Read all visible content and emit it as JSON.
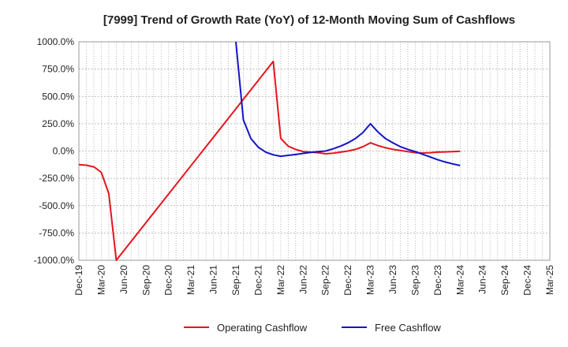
{
  "chart_data": {
    "type": "line",
    "title": "[7999]  Trend of Growth Rate (YoY) of 12-Month Moving Sum of Cashflows",
    "xlabel": "",
    "ylabel": "",
    "ylim": [
      -1000,
      1000
    ],
    "y_ticks": [
      1000,
      750,
      500,
      250,
      0,
      -250,
      -500,
      -750,
      -1000
    ],
    "y_tick_labels": [
      "1000.0%",
      "750.0%",
      "500.0%",
      "250.0%",
      "0.0%",
      "-250.0%",
      "-500.0%",
      "-750.0%",
      "-1000.0%"
    ],
    "x_tick_labels": [
      "Dec-19",
      "Mar-20",
      "Jun-20",
      "Sep-20",
      "Dec-20",
      "Mar-21",
      "Jun-21",
      "Sep-21",
      "Dec-21",
      "Mar-22",
      "Jun-22",
      "Sep-22",
      "Dec-22",
      "Mar-23",
      "Jun-23",
      "Sep-23",
      "Dec-23",
      "Mar-24",
      "Jun-24",
      "Sep-24",
      "Dec-24",
      "Mar-25"
    ],
    "x_range": [
      "2019-12",
      "2025-03"
    ],
    "grid": true,
    "legend_position": "bottom",
    "series": [
      {
        "name": "Operating Cashflow",
        "color": "#e8141c",
        "points": [
          {
            "x": "2019-12",
            "y": -125
          },
          {
            "x": "2020-01",
            "y": -130
          },
          {
            "x": "2020-02",
            "y": -145
          },
          {
            "x": "2020-03",
            "y": -195
          },
          {
            "x": "2020-04",
            "y": -390
          },
          {
            "x": "2020-05",
            "y": -1000
          },
          {
            "x": "2022-02",
            "y": 820
          },
          {
            "x": "2022-03",
            "y": 115
          },
          {
            "x": "2022-04",
            "y": 45
          },
          {
            "x": "2022-05",
            "y": 15
          },
          {
            "x": "2022-06",
            "y": -5
          },
          {
            "x": "2022-07",
            "y": -10
          },
          {
            "x": "2022-08",
            "y": -15
          },
          {
            "x": "2022-09",
            "y": -25
          },
          {
            "x": "2022-10",
            "y": -20
          },
          {
            "x": "2022-11",
            "y": -10
          },
          {
            "x": "2022-12",
            "y": 0
          },
          {
            "x": "2023-01",
            "y": 15
          },
          {
            "x": "2023-02",
            "y": 40
          },
          {
            "x": "2023-03",
            "y": 75
          },
          {
            "x": "2023-04",
            "y": 50
          },
          {
            "x": "2023-05",
            "y": 30
          },
          {
            "x": "2023-06",
            "y": 15
          },
          {
            "x": "2023-07",
            "y": 5
          },
          {
            "x": "2023-08",
            "y": -5
          },
          {
            "x": "2023-09",
            "y": -15
          },
          {
            "x": "2023-10",
            "y": -18
          },
          {
            "x": "2023-11",
            "y": -15
          },
          {
            "x": "2023-12",
            "y": -10
          },
          {
            "x": "2024-01",
            "y": -8
          },
          {
            "x": "2024-02",
            "y": -5
          },
          {
            "x": "2024-03",
            "y": -3
          }
        ]
      },
      {
        "name": "Free Cashflow",
        "color": "#1414c8",
        "points": [
          {
            "x": "2021-09",
            "y": 1000
          },
          {
            "x": "2021-10",
            "y": 285
          },
          {
            "x": "2021-11",
            "y": 115
          },
          {
            "x": "2021-12",
            "y": 35
          },
          {
            "x": "2022-01",
            "y": -10
          },
          {
            "x": "2022-02",
            "y": -35
          },
          {
            "x": "2022-03",
            "y": -48
          },
          {
            "x": "2022-04",
            "y": -40
          },
          {
            "x": "2022-05",
            "y": -32
          },
          {
            "x": "2022-06",
            "y": -22
          },
          {
            "x": "2022-07",
            "y": -12
          },
          {
            "x": "2022-08",
            "y": -5
          },
          {
            "x": "2022-09",
            "y": 0
          },
          {
            "x": "2022-10",
            "y": 20
          },
          {
            "x": "2022-11",
            "y": 45
          },
          {
            "x": "2022-12",
            "y": 75
          },
          {
            "x": "2023-01",
            "y": 115
          },
          {
            "x": "2023-02",
            "y": 170
          },
          {
            "x": "2023-03",
            "y": 250
          },
          {
            "x": "2023-04",
            "y": 175
          },
          {
            "x": "2023-05",
            "y": 115
          },
          {
            "x": "2023-06",
            "y": 75
          },
          {
            "x": "2023-07",
            "y": 40
          },
          {
            "x": "2023-08",
            "y": 15
          },
          {
            "x": "2023-09",
            "y": -5
          },
          {
            "x": "2023-10",
            "y": -30
          },
          {
            "x": "2023-11",
            "y": -55
          },
          {
            "x": "2023-12",
            "y": -80
          },
          {
            "x": "2024-01",
            "y": -100
          },
          {
            "x": "2024-02",
            "y": -118
          },
          {
            "x": "2024-03",
            "y": -133
          }
        ]
      }
    ]
  }
}
